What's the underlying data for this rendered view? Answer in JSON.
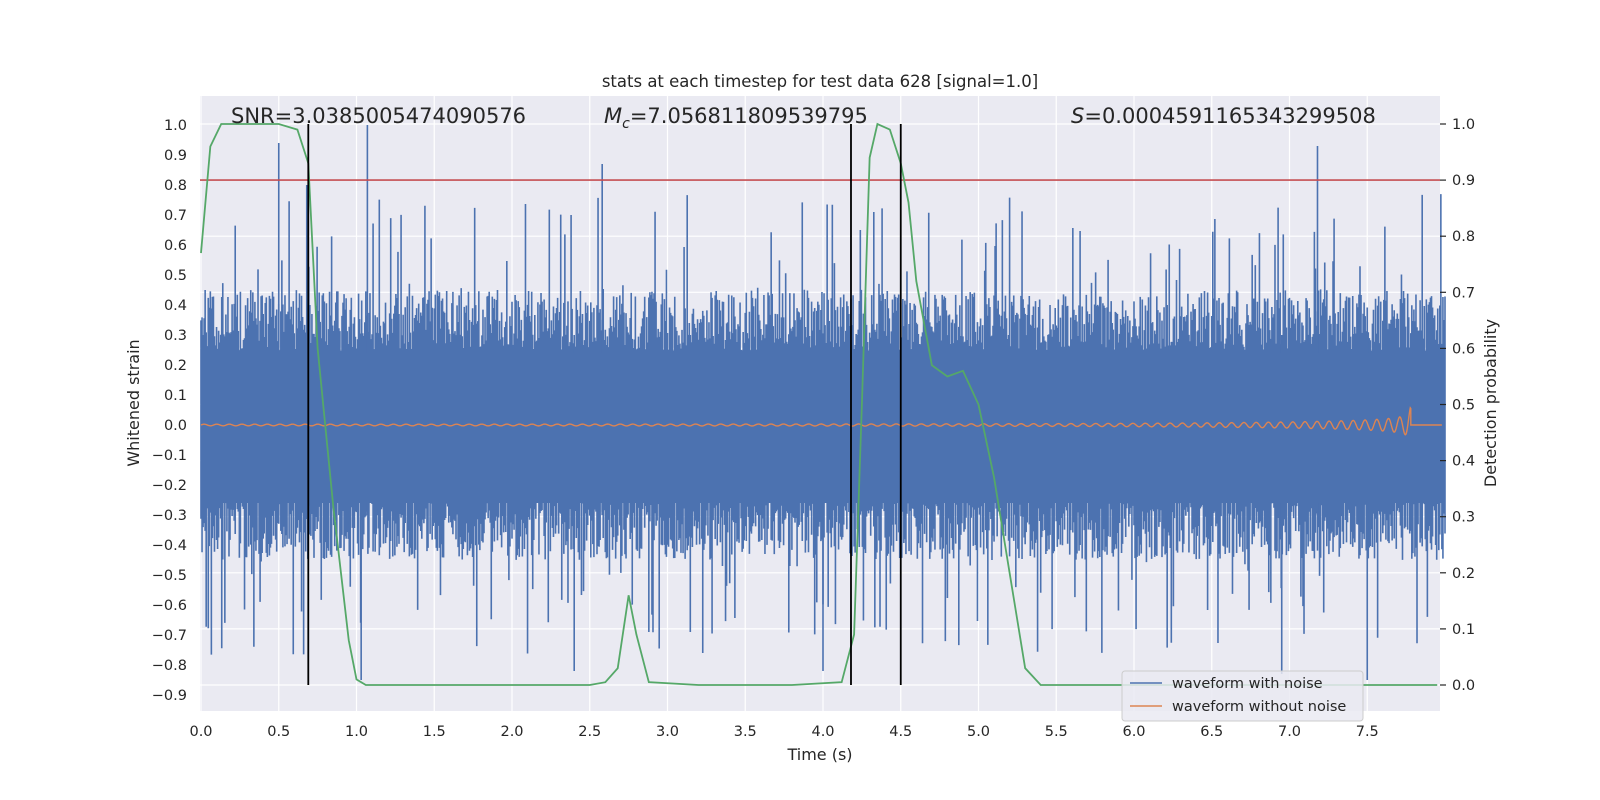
{
  "chart_data": {
    "type": "line",
    "title": "stats at each timestep for test data 628 [signal=1.0]",
    "xlabel": "Time (s)",
    "ylabel_left": "Whitened strain",
    "ylabel_right": "Detection probability",
    "xlim": [
      0.0,
      8.0
    ],
    "ylim_left": [
      -0.95,
      1.05
    ],
    "ylim_right": [
      -0.047,
      1.04
    ],
    "grid": true,
    "x_ticks": [
      "0.0",
      "0.5",
      "1.0",
      "1.5",
      "2.0",
      "2.5",
      "3.0",
      "3.5",
      "4.0",
      "4.5",
      "5.0",
      "5.5",
      "6.0",
      "6.5",
      "7.0",
      "7.5"
    ],
    "y_left_ticks": [
      "-0.9",
      "-0.8",
      "-0.7",
      "-0.6",
      "-0.5",
      "-0.4",
      "-0.3",
      "-0.2",
      "-0.1",
      "0.0",
      "0.1",
      "0.2",
      "0.3",
      "0.4",
      "0.5",
      "0.6",
      "0.7",
      "0.8",
      "0.9",
      "1.0"
    ],
    "y_right_ticks": [
      "0.0",
      "0.1",
      "0.2",
      "0.3",
      "0.4",
      "0.5",
      "0.6",
      "0.7",
      "0.8",
      "0.9",
      "1.0"
    ],
    "annotations": {
      "snr": "SNR=3.0385005474090576",
      "mc_symbol": "M",
      "mc_sub": "c",
      "mc_value": "=7.056811809539795",
      "s_symbol": "S",
      "s_value": "=0.0004591165343299508"
    },
    "threshold": {
      "axis": "right",
      "value": 0.9,
      "color": "#c44e52"
    },
    "vertical_lines": {
      "x": [
        0.69,
        4.18,
        4.5
      ],
      "color": "#000000"
    },
    "noise_envelope": {
      "name": "waveform with noise",
      "color": "#4c72b0",
      "typical_range": [
        -0.45,
        0.45
      ],
      "peaks_x": [
        0.5,
        0.68,
        1.07,
        2.58,
        7.18
      ],
      "peaks_y": [
        0.94,
        0.8,
        1.0,
        0.87,
        0.93
      ],
      "dips_x": [
        1.03,
        2.4,
        4.0,
        6.95,
        7.5
      ],
      "dips_y": [
        -0.85,
        -0.82,
        -0.82,
        -0.83,
        -0.85
      ]
    },
    "series": [
      {
        "name": "waveform without noise",
        "axis": "left",
        "color": "#dd8452",
        "chirp_end_x": 7.78,
        "max_amplitude": 0.1
      },
      {
        "name": "detection probability",
        "axis": "right",
        "color": "#55a868",
        "x": [
          0.0,
          0.06,
          0.13,
          0.3,
          0.5,
          0.62,
          0.69,
          0.75,
          0.85,
          0.95,
          1.0,
          1.06,
          1.5,
          2.0,
          2.5,
          2.6,
          2.68,
          2.75,
          2.8,
          2.88,
          3.2,
          3.8,
          4.12,
          4.2,
          4.25,
          4.3,
          4.35,
          4.43,
          4.5,
          4.55,
          4.6,
          4.7,
          4.8,
          4.9,
          5.0,
          5.1,
          5.2,
          5.3,
          5.4,
          6.0,
          7.0,
          7.95
        ],
        "values": [
          0.77,
          0.96,
          1.0,
          1.0,
          1.0,
          0.99,
          0.93,
          0.6,
          0.32,
          0.08,
          0.01,
          0.0,
          0.0,
          0.0,
          0.0,
          0.005,
          0.03,
          0.16,
          0.09,
          0.005,
          0.0,
          0.0,
          0.005,
          0.09,
          0.5,
          0.94,
          1.0,
          0.99,
          0.93,
          0.86,
          0.72,
          0.57,
          0.55,
          0.56,
          0.5,
          0.37,
          0.2,
          0.03,
          0.0,
          0.0,
          0.0,
          0.0
        ]
      }
    ],
    "legend": {
      "position": "lower right",
      "entries": [
        "waveform with noise",
        "waveform without noise"
      ]
    }
  }
}
